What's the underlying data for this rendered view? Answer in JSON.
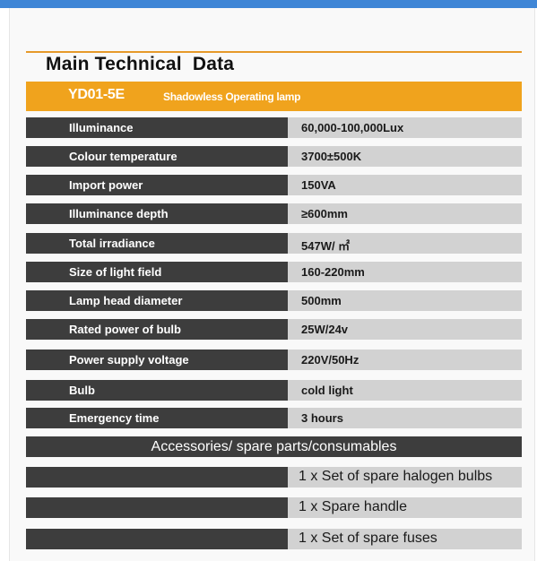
{
  "title": "Main Technical  Data",
  "header": {
    "model": "YD01-5E",
    "product": "Shadowless Operating lamp"
  },
  "specs": [
    {
      "label": "Illuminance",
      "value": "60,000-100,000Lux"
    },
    {
      "label": "Colour temperature",
      "value": "3700±500K"
    },
    {
      "label": "Import power",
      "value": "150VA"
    },
    {
      "label": "Illuminance depth",
      "value": "≥600mm"
    },
    {
      "label": "Total irradiance",
      "value": "547W/ ㎡"
    },
    {
      "label": "Size of light field",
      "value": "160-220mm"
    },
    {
      "label": "Lamp head diameter",
      "value": "500mm"
    },
    {
      "label": "Rated power of bulb",
      "value": "25W/24v"
    },
    {
      "label": "Power supply voltage",
      "value": "220V/50Hz"
    },
    {
      "label": "Bulb",
      "value": "cold light"
    },
    {
      "label": "Emergency time",
      "value": "3 hours"
    }
  ],
  "accessories": {
    "heading": "Accessories/ spare parts/consumables",
    "items": [
      "1 x Set of spare halogen bulbs",
      "1 x Spare handle",
      "1 x Set of spare fuses"
    ]
  },
  "colors": {
    "accent": "#f0a31d",
    "bar": "#3f86d6",
    "dark": "#3d3d3d",
    "light": "#d2d2d2"
  }
}
